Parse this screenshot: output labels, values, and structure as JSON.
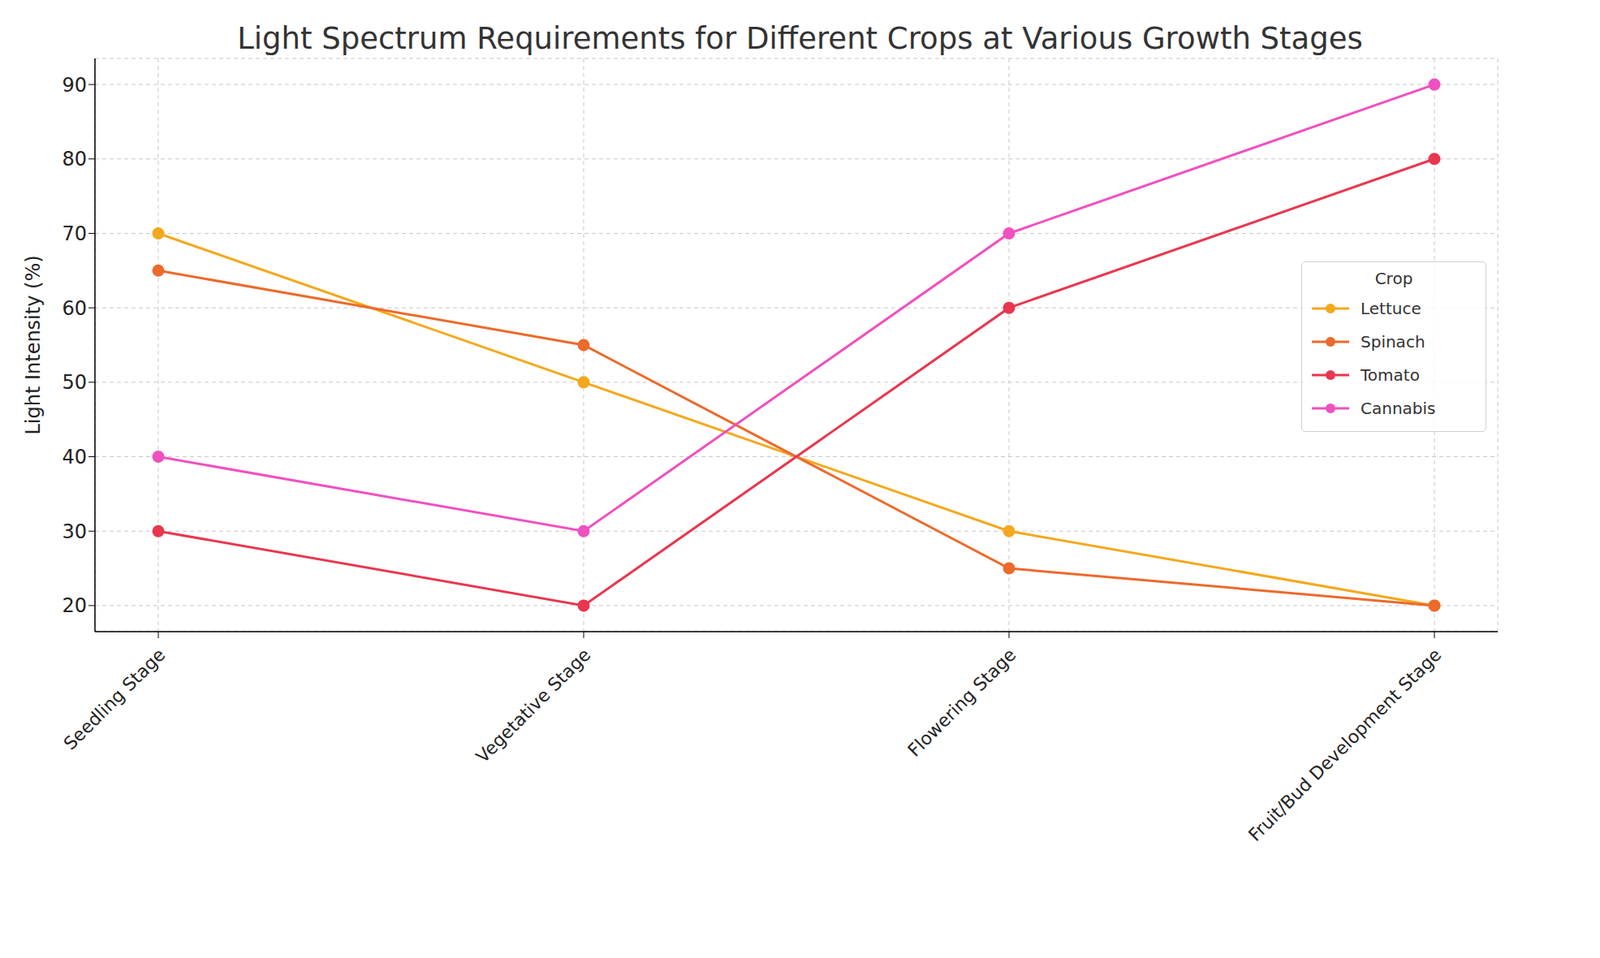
{
  "chart_data": {
    "type": "line",
    "title": "Light Spectrum Requirements for Different Crops at Various Growth Stages",
    "y_label": "Light Intensity (%)",
    "categories": [
      "Seedling Stage",
      "Vegetative Stage",
      "Flowering Stage",
      "Fruit/Bud Development Stage"
    ],
    "series": [
      {
        "name": "Lettuce",
        "color": "#f4a81d",
        "values": [
          70,
          50,
          30,
          20
        ]
      },
      {
        "name": "Spinach",
        "color": "#ec6a2b",
        "values": [
          65,
          55,
          25,
          20
        ]
      },
      {
        "name": "Tomato",
        "color": "#e8374f",
        "values": [
          30,
          20,
          60,
          80
        ]
      },
      {
        "name": "Cannabis",
        "color": "#f050c0",
        "values": [
          40,
          30,
          70,
          90
        ]
      }
    ],
    "ylim": [
      16.5,
      93.5
    ],
    "yticks": [
      20,
      30,
      40,
      50,
      60,
      70,
      80,
      90
    ],
    "grid": true,
    "legend": "center right",
    "legend_title": "Crop",
    "marker": "circle"
  }
}
